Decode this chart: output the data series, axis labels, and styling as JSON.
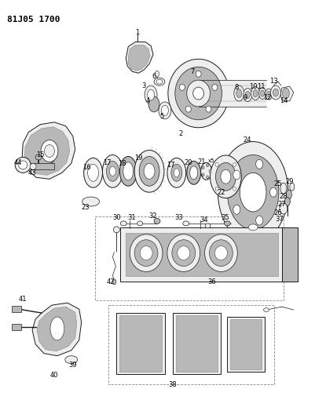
{
  "title": "81J05 1700",
  "bg_color": "#ffffff",
  "fig_width": 4.01,
  "fig_height": 5.33,
  "dpi": 100,
  "line_color": "#1a1a1a",
  "gray_fill": "#d8d8d8",
  "light_gray": "#eeeeee",
  "mid_gray": "#b8b8b8"
}
